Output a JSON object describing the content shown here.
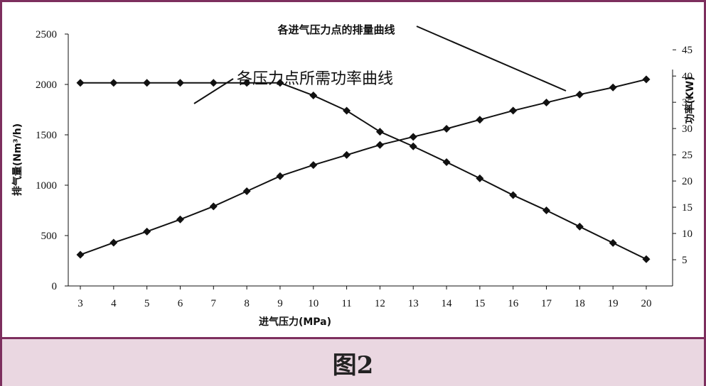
{
  "caption": "图2",
  "chart_data": {
    "type": "line",
    "title": "",
    "xlabel": "进气压力(MPa)",
    "ylabel": "排气量(Nm³/h)",
    "y2label": "功率(KW)",
    "x": [
      3,
      4,
      5,
      6,
      7,
      8,
      9,
      10,
      11,
      12,
      13,
      14,
      15,
      16,
      17,
      18,
      19,
      20
    ],
    "x_ticks": [
      "3",
      "4",
      "5",
      "6",
      "7",
      "8",
      "9",
      "10",
      "11",
      "12",
      "13",
      "14",
      "15",
      "16",
      "17",
      "18",
      "19",
      "20"
    ],
    "ylim": [
      0,
      2500
    ],
    "y_ticks": [
      "0",
      "500",
      "1000",
      "1500",
      "2000",
      "2500"
    ],
    "y2lim": [
      0,
      48
    ],
    "y2_ticks": [
      "5",
      "10",
      "15",
      "20",
      "25",
      "30",
      "35",
      "40",
      "45"
    ],
    "grid": false,
    "series": [
      {
        "axis": "left",
        "values": [
          310,
          430,
          540,
          660,
          790,
          940,
          1090,
          1200,
          1300,
          1400,
          1480,
          1560,
          1650,
          1740,
          1820,
          1900,
          1970,
          2050
        ]
      },
      {
        "axis": "right",
        "values": [
          38.7,
          38.7,
          38.7,
          38.7,
          38.7,
          38.7,
          38.7,
          36.3,
          33.4,
          29.4,
          26.6,
          23.6,
          20.5,
          17.3,
          14.4,
          11.3,
          8.2,
          5.1
        ]
      }
    ],
    "color": "#111111",
    "annotations": [
      {
        "text": "各进气压力点的排量曲线",
        "target_series": 0
      },
      {
        "text": "各压力点所需功率曲线",
        "target_series": 1
      }
    ]
  }
}
